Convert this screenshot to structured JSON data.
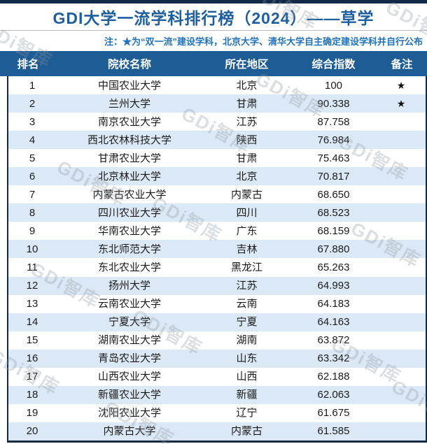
{
  "page": {
    "title": "GDI大学一流学科排行榜（2024）——草学",
    "note": "注：★为“双一流”建设学科，北京大学、清华大学自主确定建设学科并自行公布",
    "watermark": "GDi智库"
  },
  "colors": {
    "header_bg": "#1d5c94",
    "title_text": "#1d5f9e",
    "note_text": "#2273ba",
    "row_alt_bg": "#dbe9f6",
    "frame": "#142944",
    "star": "#111111"
  },
  "table": {
    "columns": [
      "排名",
      "院校名称",
      "所在地区",
      "综合指数",
      "备注"
    ],
    "rows": [
      {
        "rank": "1",
        "name": "中国农业大学",
        "region": "北京",
        "score": "100",
        "remark": "★"
      },
      {
        "rank": "2",
        "name": "兰州大学",
        "region": "甘肃",
        "score": "90.338",
        "remark": "★"
      },
      {
        "rank": "3",
        "name": "南京农业大学",
        "region": "江苏",
        "score": "87.758",
        "remark": ""
      },
      {
        "rank": "4",
        "name": "西北农林科技大学",
        "region": "陕西",
        "score": "76.984",
        "remark": ""
      },
      {
        "rank": "5",
        "name": "甘肃农业大学",
        "region": "甘肃",
        "score": "75.463",
        "remark": ""
      },
      {
        "rank": "6",
        "name": "北京林业大学",
        "region": "北京",
        "score": "70.817",
        "remark": ""
      },
      {
        "rank": "7",
        "name": "内蒙古农业大学",
        "region": "内蒙古",
        "score": "68.650",
        "remark": ""
      },
      {
        "rank": "8",
        "name": "四川农业大学",
        "region": "四川",
        "score": "68.523",
        "remark": ""
      },
      {
        "rank": "9",
        "name": "华南农业大学",
        "region": "广东",
        "score": "68.159",
        "remark": ""
      },
      {
        "rank": "10",
        "name": "东北师范大学",
        "region": "吉林",
        "score": "67.880",
        "remark": ""
      },
      {
        "rank": "11",
        "name": "东北农业大学",
        "region": "黑龙江",
        "score": "65.263",
        "remark": ""
      },
      {
        "rank": "12",
        "name": "扬州大学",
        "region": "江苏",
        "score": "64.993",
        "remark": ""
      },
      {
        "rank": "13",
        "name": "云南农业大学",
        "region": "云南",
        "score": "64.183",
        "remark": ""
      },
      {
        "rank": "14",
        "name": "宁夏大学",
        "region": "宁夏",
        "score": "64.163",
        "remark": ""
      },
      {
        "rank": "15",
        "name": "湖南农业大学",
        "region": "湖南",
        "score": "63.872",
        "remark": ""
      },
      {
        "rank": "16",
        "name": "青岛农业大学",
        "region": "山东",
        "score": "63.342",
        "remark": ""
      },
      {
        "rank": "17",
        "name": "山西农业大学",
        "region": "山西",
        "score": "62.188",
        "remark": ""
      },
      {
        "rank": "18",
        "name": "新疆农业大学",
        "region": "新疆",
        "score": "62.063",
        "remark": ""
      },
      {
        "rank": "19",
        "name": "沈阳农业大学",
        "region": "辽宁",
        "score": "61.675",
        "remark": ""
      },
      {
        "rank": "20",
        "name": "内蒙古大学",
        "region": "内蒙古",
        "score": "61.585",
        "remark": ""
      }
    ]
  }
}
